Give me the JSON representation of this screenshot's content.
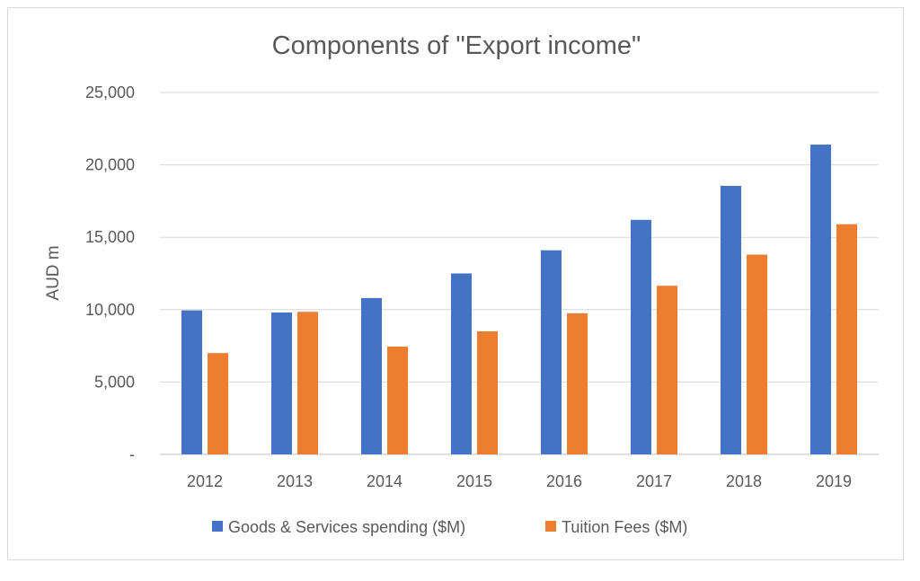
{
  "chart_data": {
    "type": "bar",
    "title": "Components of \"Export income\"",
    "xlabel": "",
    "ylabel": "AUD m",
    "categories": [
      "2012",
      "2013",
      "2014",
      "2015",
      "2016",
      "2017",
      "2018",
      "2019"
    ],
    "series": [
      {
        "name": "Goods & Services spending ($M)",
        "color": "#4472C4",
        "values": [
          9950,
          9800,
          10800,
          12500,
          14100,
          16200,
          18550,
          21400
        ]
      },
      {
        "name": "Tuition Fees ($M)",
        "color": "#ED7D31",
        "values": [
          7000,
          9850,
          7450,
          8500,
          9750,
          11650,
          13800,
          15900
        ]
      }
    ],
    "ylim": [
      0,
      25000
    ],
    "yticks": [
      0,
      5000,
      10000,
      15000,
      20000,
      25000
    ],
    "ytick_labels": [
      "-",
      "5,000",
      "10,000",
      "15,000",
      "20,000",
      "25,000"
    ],
    "grid": true,
    "legend_position": "bottom"
  }
}
